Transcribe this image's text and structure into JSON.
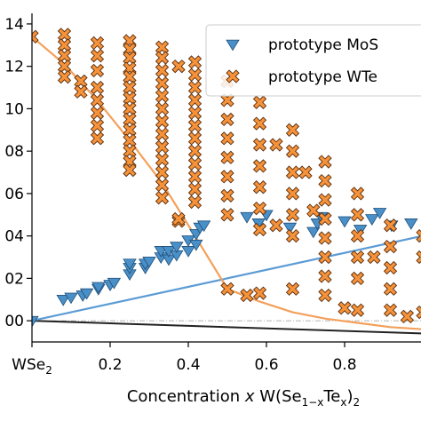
{
  "chart_data": {
    "type": "scatter",
    "title": "",
    "xlabel": "Concentration x W(Se1−xTex)2",
    "xlabel_parts": [
      "Concentration ",
      "x",
      " W(Se",
      "1−x",
      "Te",
      "x",
      ")",
      "2"
    ],
    "ylabel": "",
    "xlim": [
      0.0,
      1.0
    ],
    "ylim": [
      -0.01,
      0.145
    ],
    "x_ticks": [
      {
        "value": 0.0,
        "label": "WSe",
        "sub": "2"
      },
      {
        "value": 0.2,
        "label": "0.2",
        "sub": ""
      },
      {
        "value": 0.4,
        "label": "0.4",
        "sub": ""
      },
      {
        "value": 0.6,
        "label": "0.6",
        "sub": ""
      },
      {
        "value": 0.8,
        "label": "0.8",
        "sub": ""
      }
    ],
    "y_ticks": [
      {
        "value": 0.0,
        "label": "00"
      },
      {
        "value": 0.02,
        "label": "02"
      },
      {
        "value": 0.04,
        "label": "04"
      },
      {
        "value": 0.06,
        "label": "06"
      },
      {
        "value": 0.08,
        "label": "08"
      },
      {
        "value": 0.1,
        "label": "10"
      },
      {
        "value": 0.12,
        "label": "12"
      },
      {
        "value": 0.14,
        "label": "14"
      }
    ],
    "legend": {
      "placement": "top-right",
      "entries": [
        {
          "marker": "triangle-down",
          "color": "#4a90c8",
          "label": "prototype  MoS"
        },
        {
          "marker": "x",
          "color": "#f5923a",
          "label": "prototype  WTe"
        }
      ]
    },
    "lines": [
      {
        "name": "black-baseline",
        "color": "#222222",
        "x": [
          0.0,
          1.0
        ],
        "y": [
          0.0,
          -0.006
        ]
      },
      {
        "name": "blue-hull",
        "color": "#5b9bd5",
        "x": [
          0.0,
          1.0
        ],
        "y": [
          0.0,
          0.04
        ]
      },
      {
        "name": "orange-hull",
        "color": "#f4a05a",
        "x": [
          0.0,
          0.083,
          0.167,
          0.25,
          0.333,
          0.417,
          0.5,
          0.583,
          0.667,
          0.75,
          0.833,
          0.917,
          1.0
        ],
        "y": [
          0.134,
          0.121,
          0.104,
          0.085,
          0.065,
          0.04,
          0.015,
          0.009,
          0.004,
          0.001,
          -0.001,
          -0.003,
          -0.004
        ]
      }
    ],
    "series": [
      {
        "name": "prototype MoS2",
        "marker": "triangle-down",
        "color": "#4a90c8",
        "x": [
          0.0,
          0.08,
          0.1,
          0.13,
          0.14,
          0.17,
          0.17,
          0.2,
          0.21,
          0.25,
          0.25,
          0.25,
          0.29,
          0.29,
          0.3,
          0.33,
          0.33,
          0.35,
          0.35,
          0.37,
          0.37,
          0.4,
          0.4,
          0.42,
          0.42,
          0.43,
          0.44,
          0.55,
          0.58,
          0.6,
          0.66,
          0.72,
          0.73,
          0.74,
          0.8,
          0.84,
          0.87,
          0.89,
          0.92,
          0.97
        ],
        "y": [
          0.0,
          0.01,
          0.011,
          0.012,
          0.013,
          0.015,
          0.016,
          0.017,
          0.018,
          0.022,
          0.025,
          0.027,
          0.025,
          0.027,
          0.028,
          0.03,
          0.033,
          0.029,
          0.033,
          0.031,
          0.035,
          0.033,
          0.038,
          0.036,
          0.041,
          0.044,
          0.045,
          0.049,
          0.046,
          0.05,
          0.044,
          0.042,
          0.046,
          0.049,
          0.047,
          0.043,
          0.048,
          0.051,
          0.045,
          0.046
        ]
      },
      {
        "name": "prototype WTe2",
        "marker": "x",
        "color": "#f5923a",
        "x": [
          0.0,
          0.083,
          0.083,
          0.083,
          0.083,
          0.083,
          0.167,
          0.167,
          0.167,
          0.167,
          0.167,
          0.167,
          0.167,
          0.167,
          0.25,
          0.25,
          0.25,
          0.25,
          0.25,
          0.25,
          0.25,
          0.25,
          0.25,
          0.25,
          0.25,
          0.25,
          0.25,
          0.25,
          0.333,
          0.333,
          0.333,
          0.333,
          0.333,
          0.333,
          0.333,
          0.333,
          0.333,
          0.333,
          0.333,
          0.333,
          0.333,
          0.417,
          0.417,
          0.417,
          0.417,
          0.417,
          0.417,
          0.417,
          0.417,
          0.417,
          0.417,
          0.417,
          0.417,
          0.5,
          0.5,
          0.5,
          0.5,
          0.5,
          0.5,
          0.5,
          0.5,
          0.5,
          0.583,
          0.583,
          0.583,
          0.583,
          0.583,
          0.583,
          0.583,
          0.583,
          0.667,
          0.667,
          0.667,
          0.667,
          0.667,
          0.667,
          0.667,
          0.75,
          0.75,
          0.75,
          0.75,
          0.75,
          0.75,
          0.75,
          0.75,
          0.833,
          0.833,
          0.833,
          0.833,
          0.833,
          0.833,
          0.917,
          0.917,
          0.917,
          0.917,
          0.917,
          1.0,
          1.0,
          1.0,
          0.125,
          0.125,
          0.375,
          0.375,
          0.375,
          0.55,
          0.625,
          0.625,
          0.7,
          0.72,
          0.8,
          0.875,
          0.96
        ],
        "y": [
          0.134,
          0.135,
          0.13,
          0.125,
          0.12,
          0.115,
          0.131,
          0.125,
          0.118,
          0.11,
          0.104,
          0.098,
          0.092,
          0.086,
          0.132,
          0.128,
          0.124,
          0.119,
          0.115,
          0.11,
          0.105,
          0.1,
          0.095,
          0.09,
          0.085,
          0.08,
          0.075,
          0.071,
          0.129,
          0.124,
          0.118,
          0.112,
          0.106,
          0.1,
          0.094,
          0.088,
          0.082,
          0.076,
          0.07,
          0.064,
          0.058,
          0.122,
          0.116,
          0.11,
          0.104,
          0.098,
          0.092,
          0.086,
          0.08,
          0.074,
          0.068,
          0.062,
          0.056,
          0.113,
          0.104,
          0.095,
          0.086,
          0.077,
          0.068,
          0.059,
          0.05,
          0.015,
          0.103,
          0.093,
          0.083,
          0.073,
          0.063,
          0.053,
          0.043,
          0.013,
          0.09,
          0.08,
          0.07,
          0.06,
          0.05,
          0.04,
          0.015,
          0.075,
          0.066,
          0.057,
          0.048,
          0.039,
          0.03,
          0.021,
          0.012,
          0.06,
          0.05,
          0.04,
          0.03,
          0.02,
          0.005,
          0.045,
          0.035,
          0.025,
          0.015,
          0.005,
          0.04,
          0.03,
          0.004,
          0.113,
          0.108,
          0.12,
          0.047,
          0.048,
          0.012,
          0.083,
          0.045,
          0.07,
          0.052,
          0.006,
          0.03,
          0.002
        ]
      }
    ]
  }
}
